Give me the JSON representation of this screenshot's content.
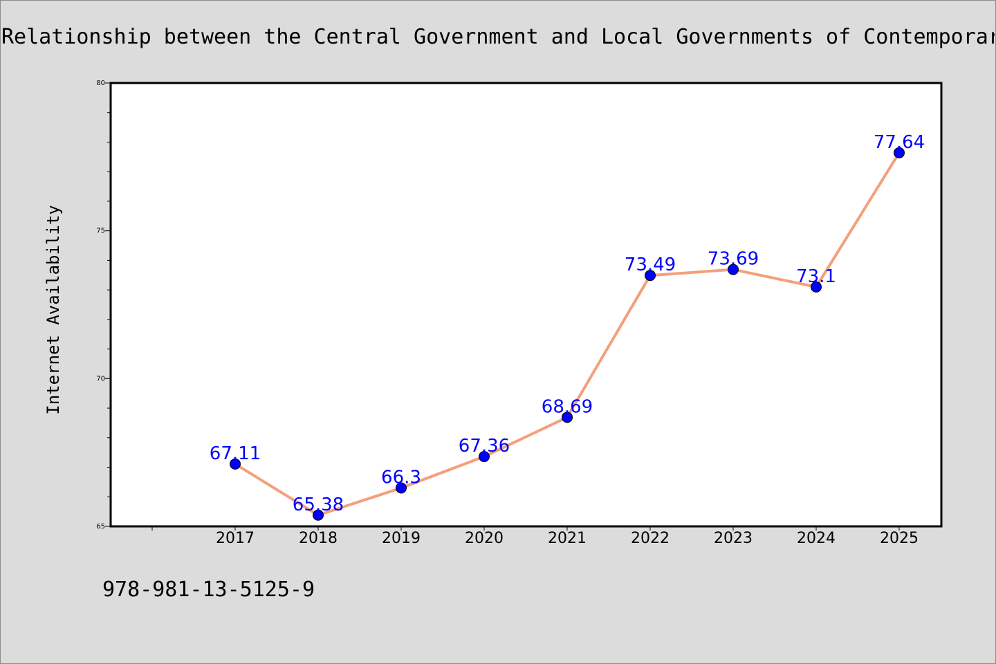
{
  "chart_data": {
    "type": "line",
    "title": "Relationship between the Central Government and Local Governments of Contemporary China",
    "xlabel": "",
    "ylabel": "Internet Availability",
    "categories": [
      "2017",
      "2018",
      "2019",
      "2020",
      "2021",
      "2022",
      "2023",
      "2024",
      "2025"
    ],
    "series": [
      {
        "values": [
          67.11,
          65.38,
          66.3,
          67.36,
          68.69,
          73.49,
          73.69,
          73.1,
          77.64
        ],
        "data_labels": [
          "67.11",
          "65.38",
          "66.3",
          "67.36",
          "68.69",
          "73.49",
          "73.69",
          "73.1",
          "77.64"
        ]
      }
    ],
    "ylim": [
      65,
      80
    ],
    "yticks": [
      "65",
      "70",
      "75",
      "80"
    ],
    "grid": false,
    "legend": "none",
    "colors": {
      "line": "#f4a07c",
      "marker": "#0000ff",
      "label": "#0000ff",
      "background": "#dcdcdc",
      "plot_background": "#ffffff"
    }
  },
  "footer": {
    "isbn": "978-981-13-5125-9"
  }
}
